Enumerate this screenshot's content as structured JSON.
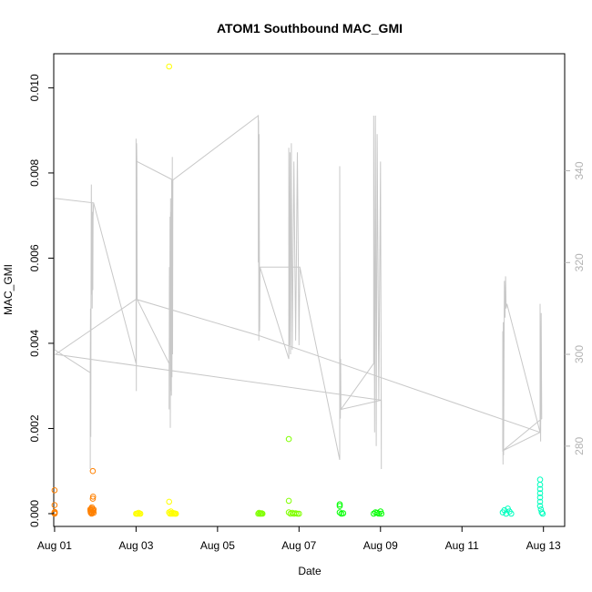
{
  "chart_data": {
    "type": "scatter",
    "title": "ATOM1 Southbound MAC_GMI",
    "xlabel": "Date",
    "ylabel": "MAC_GMI",
    "grid": false,
    "legend": "none",
    "x_ticks": [
      "Aug 01",
      "Aug 03",
      "Aug 05",
      "Aug 07",
      "Aug 09",
      "Aug 11",
      "Aug 13"
    ],
    "y_ticks": [
      "0.000",
      "0.002",
      "0.004",
      "0.006",
      "0.008",
      "0.010"
    ],
    "y2_ticks": [
      "280",
      "300",
      "320",
      "340"
    ],
    "xlim": [
      "2016-07-31T23:30",
      "2016-08-13T12:30"
    ],
    "ylim": [
      -0.0003,
      0.0108
    ],
    "y2lim": [
      262.5,
      365.5
    ],
    "colors": {
      "line": "#c8c8c8",
      "right_axis": "#b3b3b3",
      "frame": "#000000"
    },
    "series": [
      {
        "color": "#ff8000",
        "points": [
          [
            "2016-08-01T00:00",
            0.00055
          ],
          [
            "2016-08-01T00:00",
            0.0002
          ],
          [
            "2016-08-01T00:00",
            3e-05
          ],
          [
            "2016-08-01T00:00",
            0.0
          ],
          [
            "2016-08-01T00:05",
            1e-05
          ],
          [
            "2016-08-01T00:05",
            4e-05
          ],
          [
            "2016-08-01T21:00",
            0.0001
          ],
          [
            "2016-08-01T21:10",
            5e-05
          ],
          [
            "2016-08-01T21:20",
            2e-05
          ],
          [
            "2016-08-01T21:30",
            8e-05
          ],
          [
            "2016-08-01T21:40",
            0.00012
          ],
          [
            "2016-08-01T21:50",
            0.0
          ],
          [
            "2016-08-01T22:00",
            0.00015
          ],
          [
            "2016-08-01T22:10",
            3e-05
          ],
          [
            "2016-08-01T22:20",
            0.0001
          ],
          [
            "2016-08-01T22:30",
            0.00035
          ],
          [
            "2016-08-01T22:40",
            0.0004
          ],
          [
            "2016-08-01T22:30",
            0.001
          ],
          [
            "2016-08-01T22:50",
            6e-05
          ],
          [
            "2016-08-01T23:00",
            2e-05
          ],
          [
            "2016-08-01T23:00",
            0.0001
          ]
        ]
      },
      {
        "color": "#ffff00",
        "points": [
          [
            "2016-08-03T00:00",
            0.0
          ],
          [
            "2016-08-03T00:30",
            0.0
          ],
          [
            "2016-08-03T01:00",
            0.0
          ],
          [
            "2016-08-03T01:30",
            2e-05
          ],
          [
            "2016-08-03T02:00",
            0.0
          ],
          [
            "2016-08-03T02:30",
            0.0
          ],
          [
            "2016-08-03T19:30",
            0.0105
          ],
          [
            "2016-08-03T19:30",
            0.00028
          ],
          [
            "2016-08-03T19:30",
            3e-05
          ],
          [
            "2016-08-03T20:00",
            0.0
          ],
          [
            "2016-08-03T20:30",
            5e-05
          ],
          [
            "2016-08-03T21:00",
            0.0
          ],
          [
            "2016-08-03T21:30",
            2e-05
          ],
          [
            "2016-08-03T22:00",
            0.0
          ],
          [
            "2016-08-03T22:30",
            1e-05
          ],
          [
            "2016-08-03T23:00",
            0.0
          ],
          [
            "2016-08-03T23:30",
            0.0
          ]
        ]
      },
      {
        "color": "#80ff00",
        "points": [
          [
            "2016-08-06T00:00",
            0.0
          ],
          [
            "2016-08-06T00:30",
            2e-05
          ],
          [
            "2016-08-06T01:00",
            0.0
          ],
          [
            "2016-08-06T01:30",
            0.0
          ],
          [
            "2016-08-06T02:00",
            1e-05
          ],
          [
            "2016-08-06T02:30",
            0.0
          ],
          [
            "2016-08-06T18:00",
            0.00175
          ],
          [
            "2016-08-06T18:00",
            0.0003
          ],
          [
            "2016-08-06T18:00",
            3e-05
          ],
          [
            "2016-08-06T19:00",
            0.0
          ],
          [
            "2016-08-06T20:00",
            2e-05
          ],
          [
            "2016-08-06T21:00",
            0.0
          ],
          [
            "2016-08-06T22:00",
            1e-05
          ],
          [
            "2016-08-06T23:00",
            0.0
          ],
          [
            "2016-08-07T00:00",
            0.0
          ]
        ]
      },
      {
        "color": "#00ff00",
        "points": [
          [
            "2016-08-08T00:00",
            0.00022
          ],
          [
            "2016-08-08T00:00",
            0.00018
          ],
          [
            "2016-08-08T00:00",
            3e-05
          ],
          [
            "2016-08-08T01:00",
            0.0
          ],
          [
            "2016-08-08T02:00",
            1e-05
          ],
          [
            "2016-08-08T20:00",
            0.0
          ],
          [
            "2016-08-08T21:00",
            3e-05
          ],
          [
            "2016-08-08T22:00",
            2e-05
          ],
          [
            "2016-08-08T23:00",
            0.0
          ],
          [
            "2016-08-09T00:00",
            5e-05
          ],
          [
            "2016-08-09T00:30",
            0.0
          ]
        ]
      },
      {
        "color": "#00ffbf",
        "points": [
          [
            "2016-08-12T00:00",
            3e-05
          ],
          [
            "2016-08-12T01:00",
            8e-05
          ],
          [
            "2016-08-12T02:00",
            0.0
          ],
          [
            "2016-08-12T03:00",
            0.00012
          ],
          [
            "2016-08-12T04:00",
            5e-05
          ],
          [
            "2016-08-12T05:00",
            0.0
          ],
          [
            "2016-08-12T22:00",
            0.0008
          ],
          [
            "2016-08-12T22:00",
            0.00068
          ],
          [
            "2016-08-12T22:00",
            0.00058
          ],
          [
            "2016-08-12T22:00",
            0.00048
          ],
          [
            "2016-08-12T22:00",
            0.00038
          ],
          [
            "2016-08-12T22:00",
            0.00028
          ],
          [
            "2016-08-12T22:00",
            0.00018
          ],
          [
            "2016-08-12T22:30",
            0.0001
          ],
          [
            "2016-08-12T23:00",
            3e-05
          ],
          [
            "2016-08-12T23:30",
            0.0
          ]
        ]
      }
    ],
    "secondary_line": {
      "axis": "right",
      "points": [
        [
          "2016-08-01T00:00",
          319
        ],
        [
          "2016-08-01T00:00",
          334
        ],
        [
          "2016-08-01T00:00",
          301
        ],
        [
          "2016-08-01T21:00",
          296
        ],
        [
          "2016-08-01T21:00",
          275
        ],
        [
          "2016-08-01T21:00",
          296
        ],
        [
          "2016-08-01T21:10",
          310
        ],
        [
          "2016-08-01T21:20",
          282
        ],
        [
          "2016-08-01T21:30",
          318
        ],
        [
          "2016-08-01T21:40",
          337
        ],
        [
          "2016-08-01T21:50",
          313
        ],
        [
          "2016-08-01T22:00",
          333
        ],
        [
          "2016-08-01T22:10",
          310
        ],
        [
          "2016-08-01T22:20",
          331
        ],
        [
          "2016-08-01T22:30",
          314
        ],
        [
          "2016-08-01T22:40",
          330
        ],
        [
          "2016-08-01T23:00",
          333
        ],
        [
          "2016-08-01T00:00",
          334
        ],
        [
          "2016-08-01T23:00",
          333
        ],
        [
          "2016-08-03T00:00",
          298
        ],
        [
          "2016-08-03T00:00",
          347
        ],
        [
          "2016-08-03T00:10",
          292
        ],
        [
          "2016-08-03T00:20",
          346
        ],
        [
          "2016-08-03T00:30",
          342
        ],
        [
          "2016-08-03T00:40",
          312
        ],
        [
          "2016-08-03T19:30",
          298
        ],
        [
          "2016-08-03T19:30",
          288
        ],
        [
          "2016-08-03T19:40",
          319
        ],
        [
          "2016-08-03T19:50",
          300
        ],
        [
          "2016-08-03T20:00",
          330
        ],
        [
          "2016-08-03T20:10",
          284
        ],
        [
          "2016-08-03T20:20",
          334
        ],
        [
          "2016-08-03T20:30",
          292
        ],
        [
          "2016-08-03T20:40",
          331
        ],
        [
          "2016-08-03T20:50",
          291
        ],
        [
          "2016-08-03T21:00",
          338
        ],
        [
          "2016-08-03T21:10",
          295
        ],
        [
          "2016-08-03T21:20",
          343
        ],
        [
          "2016-08-03T21:30",
          300
        ],
        [
          "2016-08-03T21:40",
          338
        ],
        [
          "2016-08-03T00:40",
          342
        ],
        [
          "2016-08-03T21:40",
          338
        ],
        [
          "2016-08-06T00:00",
          352
        ],
        [
          "2016-08-06T00:00",
          320
        ],
        [
          "2016-08-06T00:10",
          351
        ],
        [
          "2016-08-06T00:20",
          303
        ],
        [
          "2016-08-06T00:30",
          348
        ],
        [
          "2016-08-06T00:40",
          321
        ],
        [
          "2016-08-06T00:50",
          305
        ],
        [
          "2016-08-06T01:00",
          319
        ],
        [
          "2016-08-06T18:00",
          299
        ],
        [
          "2016-08-06T18:00",
          345
        ],
        [
          "2016-08-06T18:20",
          302
        ],
        [
          "2016-08-06T18:40",
          344
        ],
        [
          "2016-08-06T19:00",
          300
        ],
        [
          "2016-08-06T19:30",
          346
        ],
        [
          "2016-08-06T20:00",
          301
        ],
        [
          "2016-08-06T21:00",
          342
        ],
        [
          "2016-08-06T22:00",
          303
        ],
        [
          "2016-08-06T23:00",
          344
        ],
        [
          "2016-08-07T00:00",
          302
        ],
        [
          "2016-08-07T00:30",
          319
        ],
        [
          "2016-08-06T01:00",
          319
        ],
        [
          "2016-08-07T00:30",
          319
        ],
        [
          "2016-08-08T00:00",
          277
        ],
        [
          "2016-08-08T00:00",
          341
        ],
        [
          "2016-08-08T00:10",
          300
        ],
        [
          "2016-08-08T00:20",
          286
        ],
        [
          "2016-08-08T00:30",
          299
        ],
        [
          "2016-08-08T00:40",
          288
        ],
        [
          "2016-08-08T20:00",
          298
        ],
        [
          "2016-08-08T20:00",
          352
        ],
        [
          "2016-08-08T20:30",
          283
        ],
        [
          "2016-08-08T21:00",
          352
        ],
        [
          "2016-08-08T21:30",
          280
        ],
        [
          "2016-08-08T22:00",
          348
        ],
        [
          "2016-08-08T23:00",
          290
        ],
        [
          "2016-08-09T00:00",
          342
        ],
        [
          "2016-08-09T00:30",
          275
        ],
        [
          "2016-08-09T00:30",
          290
        ],
        [
          "2016-08-08T00:40",
          288
        ],
        [
          "2016-08-09T00:30",
          290
        ],
        [
          "2016-08-01T00:30",
          300
        ],
        [
          "2016-08-03T00:00",
          312
        ],
        [
          "2016-08-06T01:00",
          304
        ],
        [
          "2016-08-12T22:00",
          283
        ],
        [
          "2016-08-12T00:00",
          279
        ],
        [
          "2016-08-12T00:00",
          305
        ],
        [
          "2016-08-12T00:10",
          276
        ],
        [
          "2016-08-12T00:20",
          307
        ],
        [
          "2016-08-12T00:30",
          278
        ],
        [
          "2016-08-12T01:00",
          316
        ],
        [
          "2016-08-12T01:20",
          308
        ],
        [
          "2016-08-12T01:40",
          317
        ],
        [
          "2016-08-12T02:00",
          310
        ],
        [
          "2016-08-12T02:30",
          311
        ],
        [
          "2016-08-12T22:00",
          283
        ],
        [
          "2016-08-12T22:00",
          311
        ],
        [
          "2016-08-12T22:20",
          281
        ],
        [
          "2016-08-12T22:40",
          309
        ],
        [
          "2016-08-12T23:00",
          286
        ],
        [
          "2016-08-12T00:00",
          279
        ],
        [
          "2016-08-12T22:00",
          283
        ]
      ]
    }
  }
}
